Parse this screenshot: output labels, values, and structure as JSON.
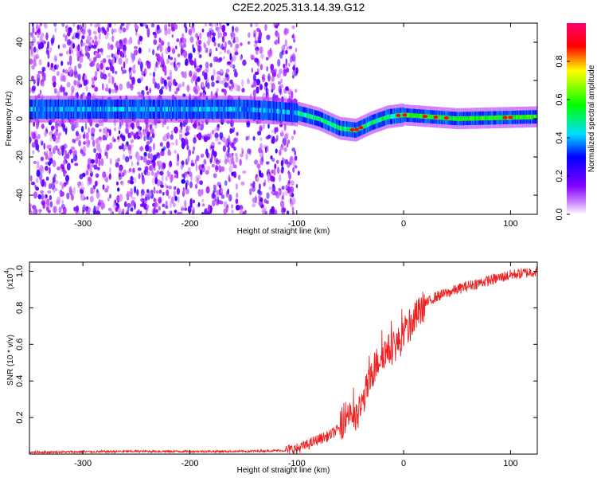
{
  "title": "C2E2.2025.313.14.39.G12",
  "chart_data": [
    {
      "type": "heatmap",
      "xlabel": "Height of straight line (km)",
      "ylabel": "Frequency (Hz)",
      "xlim": [
        -350,
        125
      ],
      "ylim": [
        -50,
        50
      ],
      "x_ticks": [
        -300,
        -200,
        -100,
        0,
        100
      ],
      "y_ticks": [
        -40,
        -20,
        0,
        20,
        40
      ],
      "colorbar": {
        "label": "Normalized spectral amplitude",
        "range": [
          0,
          1
        ],
        "ticks": [
          0.0,
          0.2,
          0.4,
          0.6,
          0.8
        ]
      },
      "ridge": {
        "x": [
          -350,
          -300,
          -250,
          -200,
          -150,
          -120,
          -100,
          -80,
          -60,
          -45,
          -30,
          -15,
          0,
          50,
          125
        ],
        "y": [
          5,
          5,
          5,
          5,
          5,
          4,
          3,
          0,
          -5,
          -6,
          -2,
          1,
          2,
          0,
          1
        ]
      },
      "colormap": [
        "#ffffff",
        "#a000ff",
        "#0000ff",
        "#00ffff",
        "#00ff00",
        "#ffff00",
        "#ff0000",
        "#ff0070"
      ]
    },
    {
      "type": "line",
      "xlabel": "Height of straight line (km)",
      "ylabel": "SNR (10 * v/v)",
      "y_multiplier": "(x10",
      "y_multiplier_exp": "4",
      "xlim": [
        -350,
        125
      ],
      "ylim": [
        0,
        1.05
      ],
      "x_ticks": [
        -300,
        -200,
        -100,
        0,
        100
      ],
      "y_ticks": [
        0.2,
        0.4,
        0.6,
        0.8,
        1.0
      ],
      "series": [
        {
          "color": "#ee2222",
          "x": [
            -350,
            -250,
            -150,
            -110,
            -100,
            -90,
            -80,
            -70,
            -60,
            -55,
            -50,
            -45,
            -40,
            -35,
            -30,
            -25,
            -20,
            -10,
            0,
            10,
            20,
            30,
            40,
            60,
            80,
            100,
            125
          ],
          "y": [
            0.01,
            0.015,
            0.015,
            0.02,
            0.03,
            0.05,
            0.08,
            0.1,
            0.14,
            0.2,
            0.24,
            0.18,
            0.25,
            0.35,
            0.42,
            0.5,
            0.55,
            0.58,
            0.64,
            0.74,
            0.82,
            0.86,
            0.88,
            0.92,
            0.95,
            0.98,
            1.0
          ]
        }
      ]
    }
  ]
}
